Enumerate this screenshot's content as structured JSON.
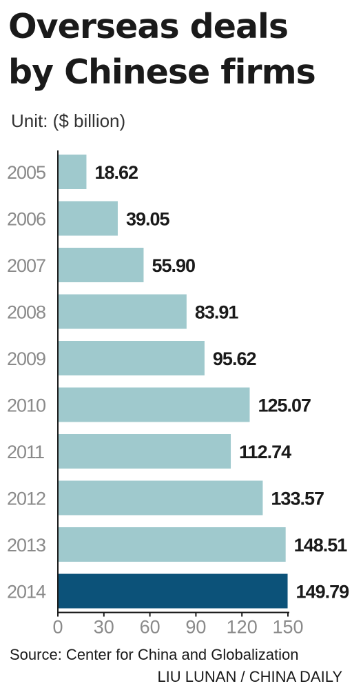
{
  "title_line1": "Overseas deals",
  "title_line2": "by Chinese firms",
  "unit": "Unit: ($ billion)",
  "source": "Source: Center for China and Globalization",
  "credit": "LIU LUNAN / CHINA DAILY",
  "colors": {
    "bar": "#9fc9cd",
    "highlight": "#0c5279",
    "axis": "#1a1a1a"
  },
  "chart_data": {
    "type": "bar",
    "orientation": "horizontal",
    "categories": [
      "2005",
      "2006",
      "2007",
      "2008",
      "2009",
      "2010",
      "2011",
      "2012",
      "2013",
      "2014"
    ],
    "values": [
      18.62,
      39.05,
      55.9,
      83.91,
      95.62,
      125.07,
      112.74,
      133.57,
      148.51,
      149.79
    ],
    "value_labels": [
      "18.62",
      "39.05",
      "55.90",
      "83.91",
      "95.62",
      "125.07",
      "112.74",
      "133.57",
      "148.51",
      "149.79"
    ],
    "highlighted_category": "2014",
    "xlim": [
      0,
      150
    ],
    "xticks": [
      "0",
      "30",
      "60",
      "90",
      "120",
      "150"
    ],
    "xtick_values": [
      0,
      30,
      60,
      90,
      120,
      150
    ],
    "grid": false,
    "legend": "none"
  }
}
